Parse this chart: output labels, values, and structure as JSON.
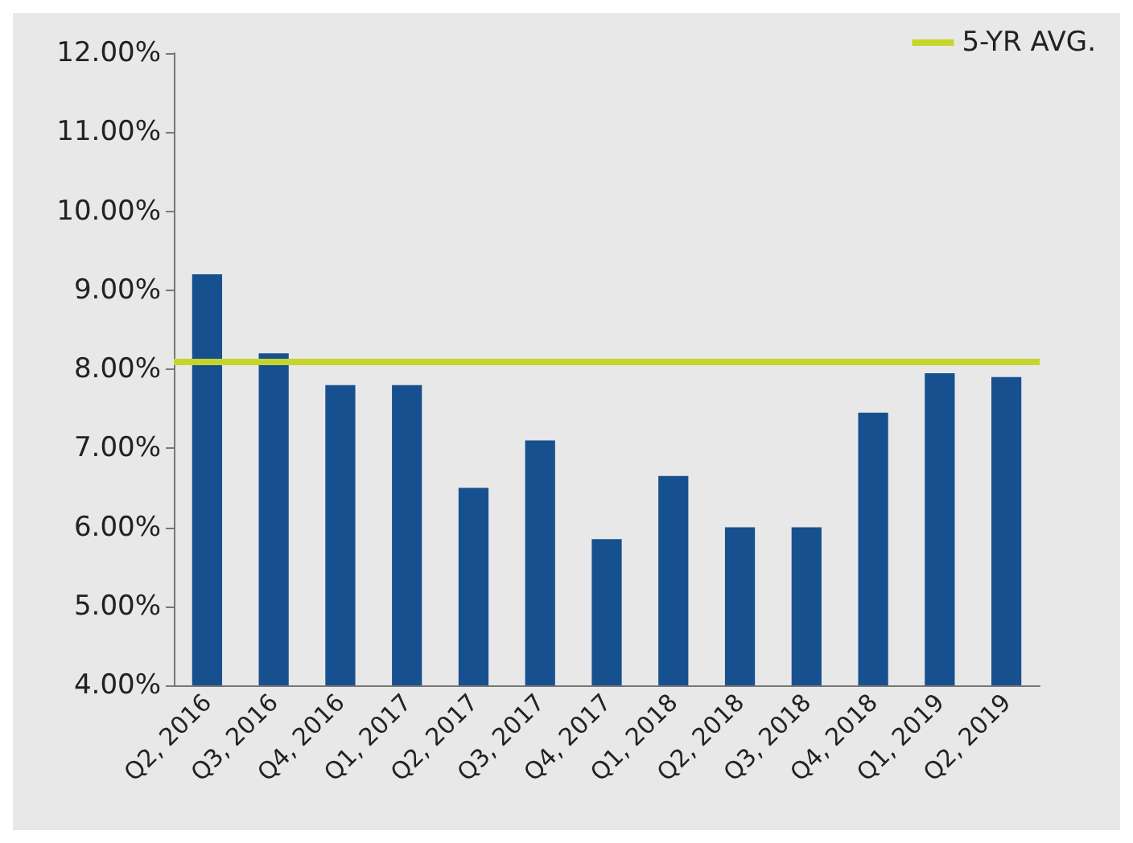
{
  "chart_data": {
    "type": "bar",
    "categories": [
      "Q2, 2016",
      "Q3, 2016",
      "Q4, 2016",
      "Q1, 2017",
      "Q2, 2017",
      "Q3, 2017",
      "Q4, 2017",
      "Q1, 2018",
      "Q2, 2018",
      "Q3, 2018",
      "Q4, 2018",
      "Q1, 2019",
      "Q2, 2019"
    ],
    "values": [
      9.2,
      8.2,
      7.8,
      7.8,
      6.5,
      7.1,
      5.85,
      6.65,
      6.0,
      6.0,
      7.45,
      7.95,
      7.9
    ],
    "color": "#17508f",
    "ylim": [
      4,
      12
    ],
    "yticks": [
      {
        "value": 4,
        "label": "4.00%"
      },
      {
        "value": 5,
        "label": "5.00%"
      },
      {
        "value": 6,
        "label": "6.00%"
      },
      {
        "value": 7,
        "label": "7.00%"
      },
      {
        "value": 8,
        "label": "8.00%"
      },
      {
        "value": 9,
        "label": "9.00%"
      },
      {
        "value": 10,
        "label": "10.00%"
      },
      {
        "value": 11,
        "label": "11.00%"
      },
      {
        "value": 12,
        "label": "12.00%"
      }
    ],
    "ref_lines": [
      {
        "axis": "y",
        "value": 8.1,
        "label": "5-YR AVG.",
        "color": "#c5d52b"
      }
    ],
    "legend": "top right",
    "grid": false
  }
}
